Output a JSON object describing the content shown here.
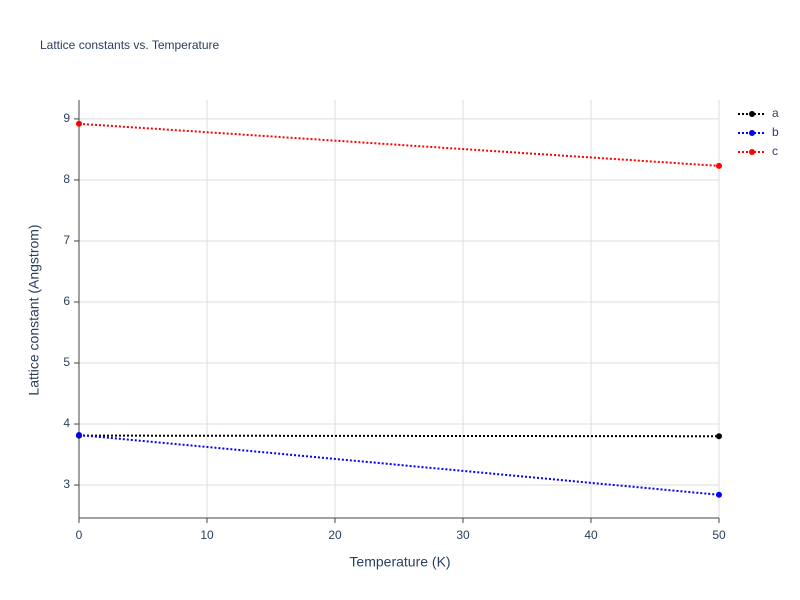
{
  "chart_data": {
    "type": "line",
    "title": "Lattice constants vs. Temperature",
    "x_label": "Temperature (K)",
    "y_label": "Lattice constant (Angstrom)",
    "x": [
      0,
      50
    ],
    "series": [
      {
        "name": "a",
        "color": "#000000",
        "values": [
          3.81,
          3.8
        ]
      },
      {
        "name": "b",
        "color": "#0000ff",
        "values": [
          3.82,
          2.84
        ]
      },
      {
        "name": "c",
        "color": "#ff0000",
        "values": [
          8.92,
          8.23
        ]
      }
    ],
    "xlim": [
      0,
      50
    ],
    "xticks": [
      0,
      10,
      20,
      30,
      40,
      50
    ],
    "ylim": [
      2.46,
      9.31
    ],
    "yticks": [
      3,
      4,
      5,
      6,
      7,
      8,
      9
    ],
    "grid": true,
    "legend": "right"
  }
}
